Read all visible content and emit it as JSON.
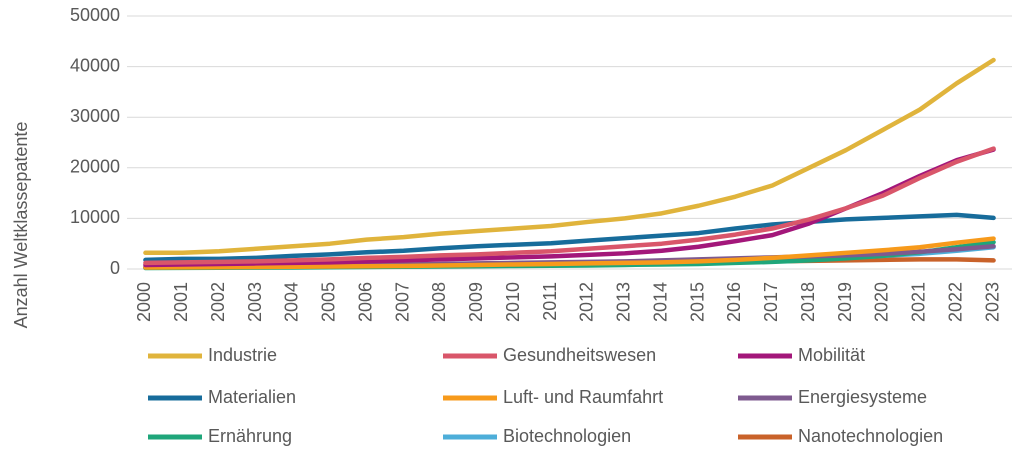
{
  "chart_data": {
    "type": "line",
    "y_label": "Anzahl Weltklassepatente",
    "x": [
      "2000",
      "2001",
      "2002",
      "2003",
      "2004",
      "2005",
      "2006",
      "2007",
      "2008",
      "2009",
      "2010",
      "2011",
      "2012",
      "2013",
      "2014",
      "2015",
      "2016",
      "2017",
      "2018",
      "2019",
      "2020",
      "2021",
      "2022",
      "2023"
    ],
    "ylim": [
      0,
      50000
    ],
    "yticks": [
      0,
      10000,
      20000,
      30000,
      40000,
      50000
    ],
    "grid": true,
    "series": [
      {
        "name": "Industrie",
        "color": "#E0B43C",
        "values": [
          3200,
          3200,
          3500,
          4000,
          4500,
          5000,
          5800,
          6300,
          7000,
          7500,
          8000,
          8500,
          9300,
          10000,
          11000,
          12500,
          14300,
          16500,
          20000,
          23500,
          27500,
          31500,
          36700,
          41300
        ]
      },
      {
        "name": "Gesundheitswesen",
        "color": "#D9566A",
        "values": [
          1200,
          1300,
          1400,
          1500,
          1700,
          1900,
          2200,
          2400,
          2700,
          2900,
          3200,
          3500,
          4000,
          4500,
          5000,
          5800,
          6800,
          8000,
          9800,
          12000,
          14500,
          18000,
          21200,
          23800
        ]
      },
      {
        "name": "Mobilität",
        "color": "#A3177A",
        "values": [
          800,
          900,
          1000,
          1100,
          1200,
          1300,
          1500,
          1700,
          1900,
          2100,
          2300,
          2500,
          2800,
          3100,
          3600,
          4400,
          5500,
          6700,
          9000,
          12000,
          15000,
          18400,
          21500,
          23600
        ]
      },
      {
        "name": "Materialien",
        "color": "#176C9B",
        "values": [
          1800,
          2000,
          2000,
          2200,
          2600,
          2900,
          3300,
          3600,
          4100,
          4500,
          4800,
          5100,
          5600,
          6100,
          6600,
          7100,
          8000,
          8800,
          9300,
          9800,
          10100,
          10400,
          10700,
          10100
        ]
      },
      {
        "name": "Luft- und Raumfahrt",
        "color": "#F79A1B",
        "values": [
          300,
          320,
          350,
          400,
          450,
          500,
          550,
          600,
          700,
          800,
          900,
          1000,
          1100,
          1200,
          1300,
          1500,
          1800,
          2200,
          2700,
          3200,
          3700,
          4300,
          5200,
          6000
        ]
      },
      {
        "name": "Energiesysteme",
        "color": "#7E5A8F",
        "values": [
          400,
          450,
          500,
          550,
          600,
          700,
          800,
          900,
          1000,
          1100,
          1200,
          1300,
          1400,
          1500,
          1700,
          1900,
          2100,
          2300,
          2500,
          2700,
          3000,
          3400,
          3900,
          4500
        ]
      },
      {
        "name": "Ernährung",
        "color": "#1FA67A",
        "values": [
          200,
          220,
          250,
          280,
          300,
          350,
          400,
          450,
          500,
          550,
          600,
          650,
          700,
          800,
          900,
          1000,
          1200,
          1400,
          1700,
          2100,
          2600,
          3300,
          4300,
          5300
        ]
      },
      {
        "name": "Biotechnologien",
        "color": "#4DAED9",
        "values": [
          300,
          300,
          350,
          400,
          450,
          500,
          550,
          600,
          650,
          700,
          750,
          800,
          900,
          1000,
          1100,
          1200,
          1400,
          1600,
          1900,
          2200,
          2600,
          3000,
          3600,
          4300
        ]
      },
      {
        "name": "Nanotechnologien",
        "color": "#C9622A",
        "values": [
          300,
          300,
          350,
          400,
          450,
          500,
          550,
          600,
          700,
          750,
          800,
          900,
          1000,
          1050,
          1100,
          1200,
          1400,
          1500,
          1600,
          1700,
          1800,
          1900,
          1900,
          1700
        ]
      }
    ]
  }
}
